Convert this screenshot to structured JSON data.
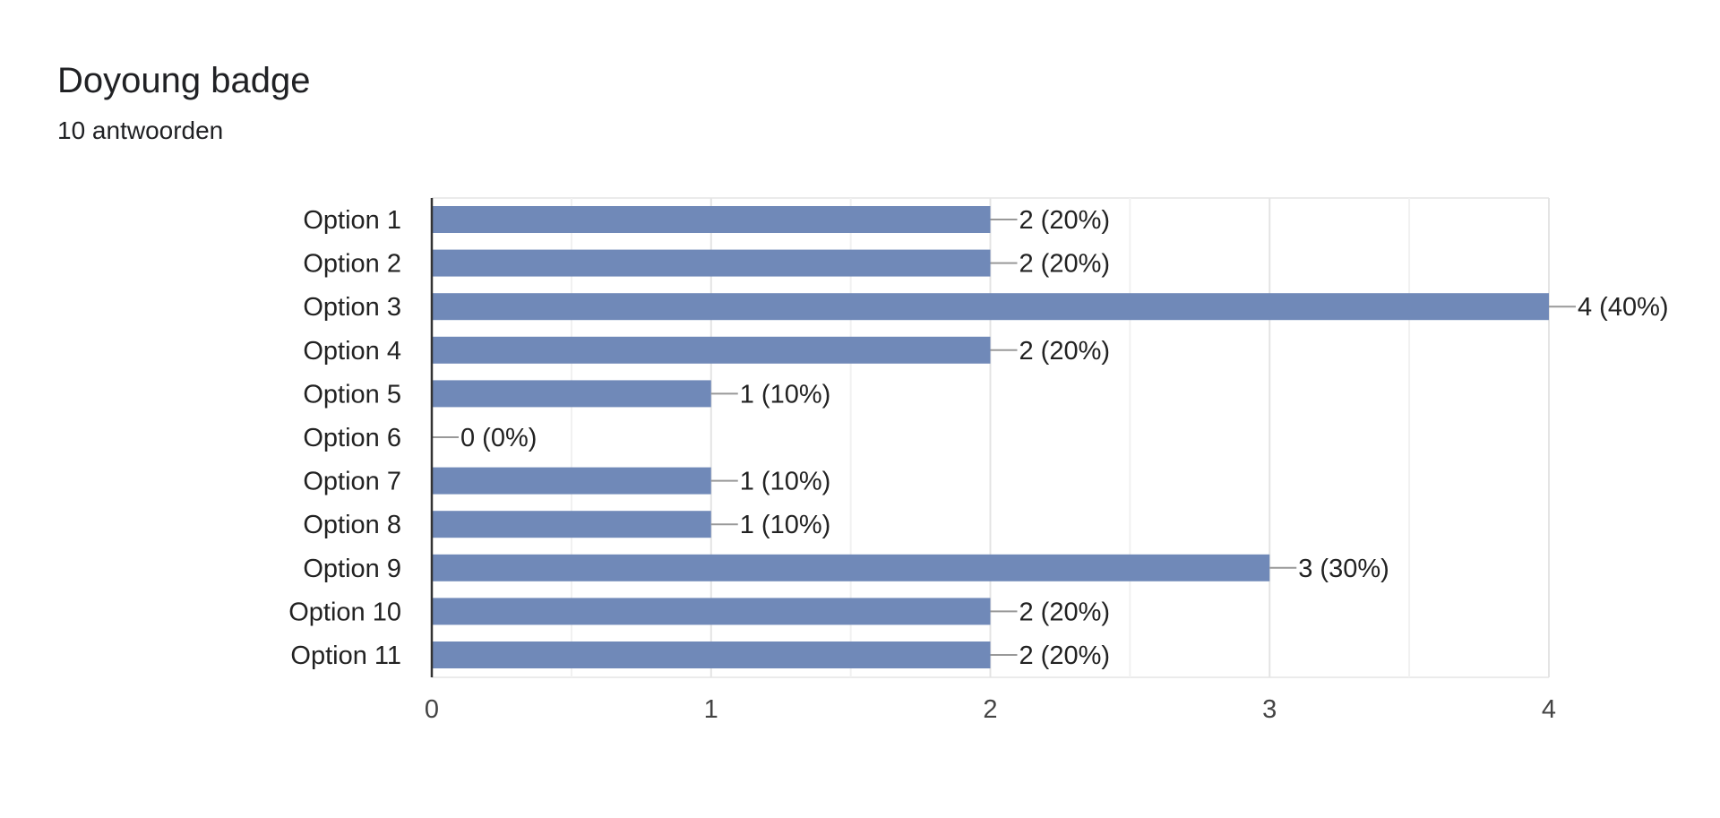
{
  "header": {
    "title": "Doyoung badge",
    "subtitle": "10 antwoorden"
  },
  "chart_data": {
    "type": "bar",
    "orientation": "horizontal",
    "title": "",
    "xlabel": "",
    "ylabel": "",
    "categories": [
      "Option 1",
      "Option 2",
      "Option 3",
      "Option 4",
      "Option 5",
      "Option 6",
      "Option 7",
      "Option 8",
      "Option 9",
      "Option 10",
      "Option 11"
    ],
    "values": [
      2,
      2,
      4,
      2,
      1,
      0,
      1,
      1,
      3,
      2,
      2
    ],
    "data_labels": [
      "2 (20%)",
      "2 (20%)",
      "4 (40%)",
      "2 (20%)",
      "1 (10%)",
      "0 (0%)",
      "1 (10%)",
      "1 (10%)",
      "3 (30%)",
      "2 (20%)",
      "2 (20%)"
    ],
    "x_ticks": [
      "0",
      "1",
      "2",
      "3",
      "4"
    ],
    "xlim": [
      0,
      4
    ],
    "grid": true,
    "legend": "none",
    "bar_color": "#7089b8",
    "grid_color": "#ebebeb",
    "axis_color": "#333333",
    "leader_color": "#999999"
  }
}
